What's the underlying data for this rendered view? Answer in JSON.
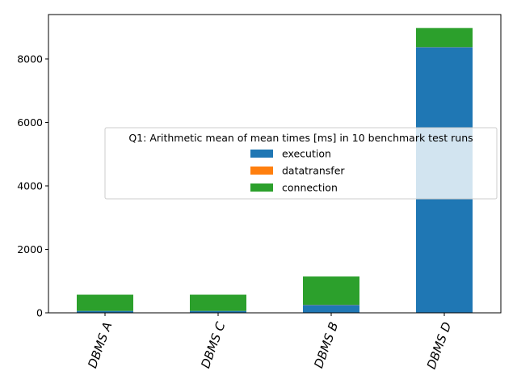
{
  "chart_data": {
    "type": "bar",
    "stacked": true,
    "categories": [
      "DBMS A",
      "DBMS C",
      "DBMS B",
      "DBMS D"
    ],
    "series": [
      {
        "name": "execution",
        "color": "#1f77b4",
        "values": [
          60,
          60,
          250,
          8370
        ]
      },
      {
        "name": "datatransfer",
        "color": "#ff7f0e",
        "values": [
          2,
          2,
          5,
          5
        ]
      },
      {
        "name": "connection",
        "color": "#2ca02c",
        "values": [
          510,
          510,
          890,
          600
        ]
      }
    ],
    "legend_title": "Q1: Arithmetic mean of mean times [ms] in 10 benchmark test runs",
    "legend_position": "center-right",
    "ylim": [
      0,
      9400
    ],
    "yticks": [
      "0",
      "2000",
      "4000",
      "6000",
      "8000"
    ],
    "ytick_values": [
      0,
      2000,
      4000,
      6000,
      8000
    ],
    "grid": false
  }
}
